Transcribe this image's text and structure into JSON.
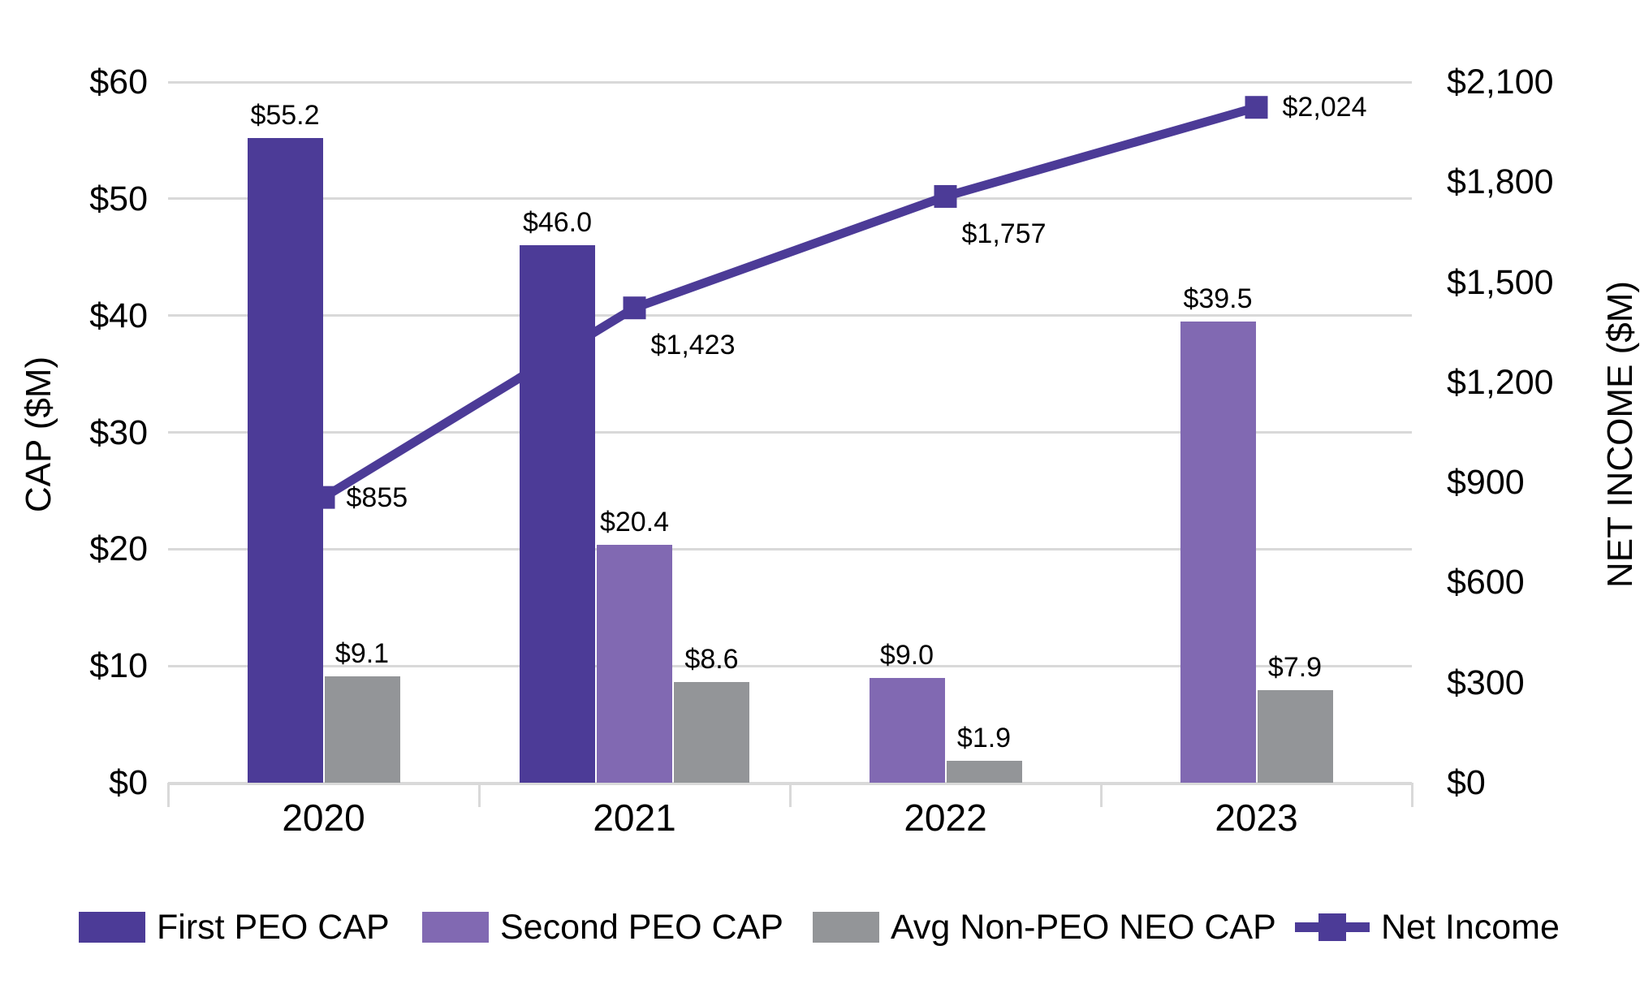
{
  "chart_data": {
    "type": "bar-line-combo",
    "categories": [
      "2020",
      "2021",
      "2022",
      "2023"
    ],
    "series": [
      {
        "name": "First PEO CAP",
        "type": "bar",
        "axis": "left",
        "color": "#4C3B97",
        "values": [
          55.2,
          46.0,
          null,
          null
        ],
        "labels": [
          "$55.2",
          "$46.0",
          null,
          null
        ]
      },
      {
        "name": "Second PEO CAP",
        "type": "bar",
        "axis": "left",
        "color": "#8169B2",
        "values": [
          null,
          20.4,
          9.0,
          39.5
        ],
        "labels": [
          null,
          "$20.4",
          "$9.0",
          "$39.5"
        ]
      },
      {
        "name": "Avg Non-PEO NEO CAP",
        "type": "bar",
        "axis": "left",
        "color": "#939598",
        "values": [
          9.1,
          8.6,
          1.9,
          7.9
        ],
        "labels": [
          "$9.1",
          "$8.6",
          "$1.9",
          "$7.9"
        ]
      },
      {
        "name": "Net Income",
        "type": "line",
        "axis": "right",
        "color": "#4C3B97",
        "values": [
          855,
          1423,
          1757,
          2024
        ],
        "labels": [
          "$855",
          "$1,423",
          "$1,757",
          "$2,024"
        ]
      }
    ],
    "left_axis": {
      "title": "CAP ($M)",
      "min": 0,
      "max": 60,
      "ticks": [
        "$60",
        "$50",
        "$40",
        "$30",
        "$20",
        "$10",
        "$0"
      ]
    },
    "right_axis": {
      "title": "NET INCOME ($M)",
      "min": 0,
      "max": 2100,
      "ticks": [
        "$2,100",
        "$1,800",
        "$1,500",
        "$1,200",
        "$900",
        "$600",
        "$300",
        "$0"
      ]
    },
    "grid": true,
    "legend_position": "bottom"
  },
  "colors": {
    "gridline": "#d9d9d9",
    "axis_line": "#d9d9d9",
    "text": "#000000",
    "background": "#ffffff"
  }
}
